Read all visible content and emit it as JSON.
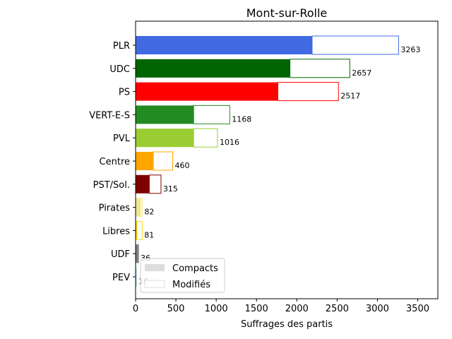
{
  "chart_data": {
    "type": "bar",
    "orientation": "horizontal",
    "title": "Mont-sur-Rolle",
    "xlabel": "Suffrages des partis",
    "ylabel": "",
    "xlim": [
      0,
      3750
    ],
    "xticks": [
      0,
      500,
      1000,
      1500,
      2000,
      2500,
      3000,
      3500
    ],
    "categories": [
      "PLR",
      "UDC",
      "PS",
      "VERT-E-S",
      "PVL",
      "Centre",
      "PST/Sol.",
      "Pirates",
      "Libres",
      "UDF",
      "PEV"
    ],
    "colors": [
      "#4169e1",
      "#006400",
      "#ff0000",
      "#228b22",
      "#9acd32",
      "#ffa500",
      "#800000",
      "#f0e68c",
      "#ffd700",
      "#808080",
      "#add8e6"
    ],
    "series": [
      {
        "name": "Compacts",
        "values": [
          2190,
          1915,
          1765,
          720,
          720,
          220,
          170,
          60,
          15,
          30,
          2
        ]
      },
      {
        "name": "Modifiés",
        "values": [
          1073,
          742,
          752,
          448,
          296,
          240,
          145,
          22,
          66,
          6,
          8
        ]
      }
    ],
    "totals": [
      3263,
      2657,
      2517,
      1168,
      1016,
      460,
      315,
      82,
      81,
      36,
      10
    ],
    "legend": {
      "placement": "lower-left",
      "entries": [
        "Compacts",
        "Modifiés"
      ]
    },
    "grid": false
  }
}
